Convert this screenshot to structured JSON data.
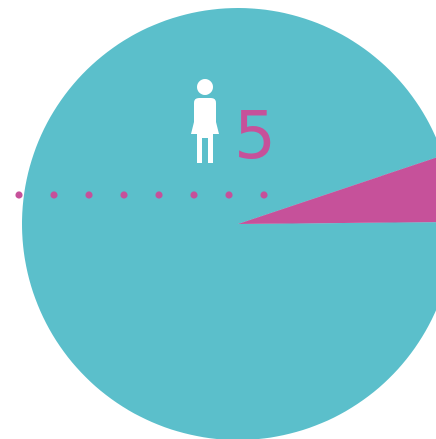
{
  "chart_data": {
    "type": "pie",
    "slices": [
      {
        "label": "",
        "value": 95,
        "color": "#5bbfcb"
      },
      {
        "label": "",
        "value": 5,
        "color": "#c6519a"
      }
    ],
    "annotation": {
      "value": "5",
      "icon": "woman-icon",
      "color": "#c6519a",
      "leader": "dotted"
    }
  },
  "colors": {
    "background": "#ffffff",
    "icon": "#ffffff"
  }
}
